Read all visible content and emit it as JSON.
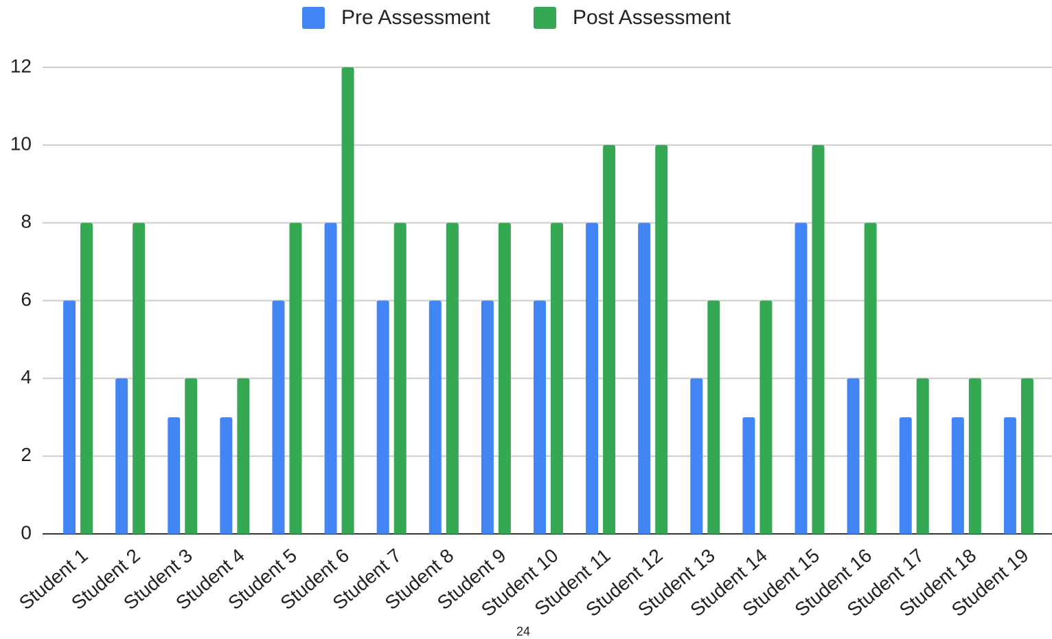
{
  "chart_data": {
    "type": "bar",
    "categories": [
      "Student 1",
      "Student 2",
      "Student 3",
      "Student 4",
      "Student 5",
      "Student 6",
      "Student 7",
      "Student 8",
      "Student 9",
      "Student 10",
      "Student 11",
      "Student 12",
      "Student 13",
      "Student 14",
      "Student 15",
      "Student 16",
      "Student 17",
      "Student 18",
      "Student 19"
    ],
    "series": [
      {
        "name": "Pre Assessment",
        "color": "#4285f4",
        "values": [
          6,
          4,
          3,
          3,
          6,
          8,
          6,
          6,
          6,
          6,
          8,
          8,
          4,
          3,
          8,
          4,
          3,
          3,
          3
        ]
      },
      {
        "name": "Post Assessment",
        "color": "#34a853",
        "values": [
          8,
          8,
          4,
          4,
          8,
          12,
          8,
          8,
          8,
          8,
          10,
          10,
          6,
          6,
          10,
          8,
          4,
          4,
          4
        ]
      }
    ],
    "ylim": [
      0,
      12
    ],
    "yticks": [
      0,
      2,
      4,
      6,
      8,
      10,
      12
    ],
    "grid": true,
    "legend": "top",
    "annotation": "24"
  }
}
